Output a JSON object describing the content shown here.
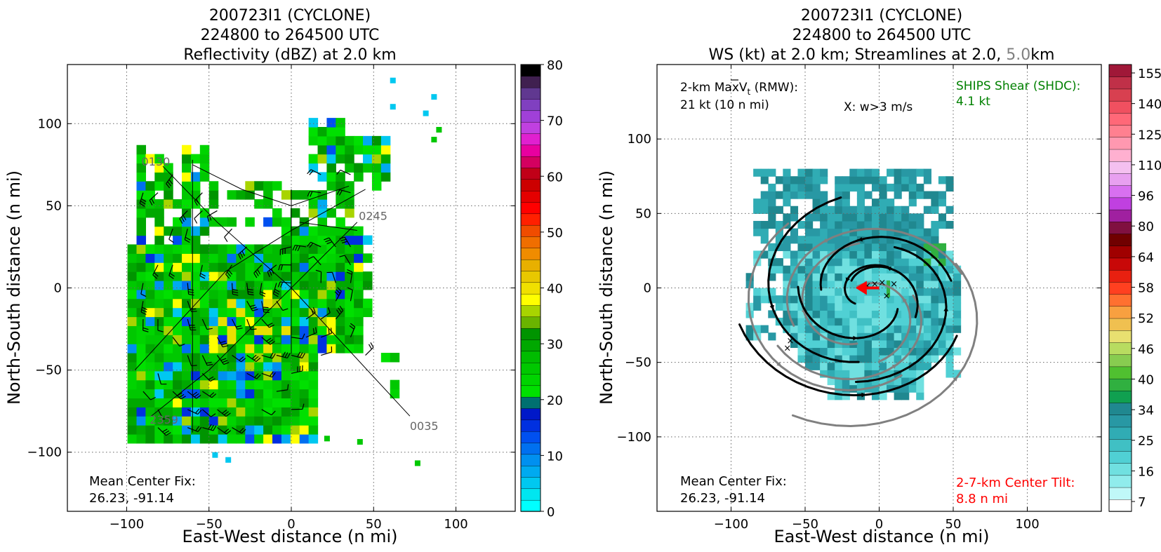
{
  "chart_data": [
    {
      "type": "heatmap",
      "title_lines": [
        "200723I1 (CYCLONE)",
        "224800 to 264500 UTC",
        "Reflectivity (dBZ) at 2.0 km"
      ],
      "xlabel": "East-West distance (n mi)",
      "ylabel": "North-South distance (n mi)",
      "xlim": [
        -136,
        136
      ],
      "ylim": [
        -136,
        136
      ],
      "xticks": [
        -100,
        -50,
        0,
        50,
        100
      ],
      "yticks": [
        -100,
        -50,
        0,
        50,
        100
      ],
      "grid": true,
      "colorbar": {
        "label_values": [
          0,
          10,
          20,
          30,
          40,
          50,
          60,
          70,
          80
        ],
        "range": [
          0,
          80
        ],
        "colors": [
          "#00ffff",
          "#00e6f0",
          "#00c8f0",
          "#00aaf0",
          "#0090f0",
          "#0070f0",
          "#0050f0",
          "#0030e0",
          "#0018c8",
          "#007070",
          "#00e000",
          "#00d400",
          "#00c800",
          "#00bc00",
          "#00a800",
          "#009400",
          "#6ab400",
          "#a8d400",
          "#ffff00",
          "#f0e000",
          "#e8c800",
          "#e8b000",
          "#f08c00",
          "#f06e00",
          "#f04c00",
          "#ff2000",
          "#ff0000",
          "#e40000",
          "#cc0000",
          "#c00018",
          "#d40060",
          "#e800a0",
          "#e020d0",
          "#c040e0",
          "#a040d8",
          "#8040c0",
          "#603890",
          "#402050",
          "#000000"
        ]
      },
      "storm_center": [
        0,
        0
      ],
      "flight_track_labels": [
        {
          "text": "0130",
          "x": -91,
          "y": 77
        },
        {
          "text": "0245",
          "x": 41,
          "y": 44
        },
        {
          "text": "2359",
          "x": -86,
          "y": -80
        },
        {
          "text": "0035",
          "x": 72,
          "y": -84
        }
      ],
      "annotation": {
        "line1": "Mean Center Fix:",
        "line2": "26.23, -91.14"
      }
    },
    {
      "type": "heatmap",
      "title_lines": [
        "200723I1 (CYCLONE)",
        "224800 to 264500 UTC",
        "WS (kt) at 2.0 km; Streamlines at 2.0,",
        "5.0",
        "km"
      ],
      "xlabel": "East-West distance (n mi)",
      "ylabel": "North-South distance (n mi)",
      "xlim": [
        -150,
        150
      ],
      "ylim": [
        -150,
        150
      ],
      "xticks": [
        -100,
        -50,
        0,
        50,
        100
      ],
      "yticks": [
        -100,
        -50,
        0,
        50,
        100
      ],
      "grid": true,
      "colorbar": {
        "label_values": [
          7,
          16,
          25,
          34,
          40,
          46,
          52,
          58,
          64,
          80,
          96,
          110,
          125,
          140,
          155
        ],
        "colors": [
          "#ffffff",
          "#c0f8f8",
          "#90ecec",
          "#70e0e0",
          "#50d0d4",
          "#40c0c4",
          "#30acb4",
          "#2898a4",
          "#208890",
          "#10a050",
          "#30b040",
          "#50c030",
          "#88cc50",
          "#b8dc60",
          "#e8e070",
          "#f0c050",
          "#f8a040",
          "#ff7030",
          "#ff4020",
          "#e82010",
          "#c80808",
          "#a00000",
          "#700000",
          "#801040",
          "#a020a0",
          "#c040e0",
          "#d870f0",
          "#e8a0f0",
          "#f4c0f0",
          "#ffb0d0",
          "#ff98b0",
          "#ff8090",
          "#ff6878",
          "#f05060",
          "#d84050",
          "#c03048",
          "#a01838"
        ]
      },
      "max_vt": {
        "line1": "2-km Max",
        "symbol": "V",
        "sub": "t",
        "after": " (RMW):",
        "line2": "21 kt (10 n mi)"
      },
      "updraft_legend": "X: w>3 m/s",
      "ships_shear": {
        "line1": "SHIPS Shear (SHDC):",
        "line2": "4.1 kt"
      },
      "annotation": {
        "line1": "Mean Center Fix:",
        "line2": "26.23, -91.14"
      },
      "tilt": {
        "line1": "2-7-km Center Tilt:",
        "line2": "8.8 n mi"
      },
      "center_tilt_vector": {
        "from": [
          0,
          0
        ],
        "to": [
          -15,
          0
        ]
      },
      "updraft_markers": [
        [
          -3,
          3
        ],
        [
          -8,
          2
        ],
        [
          2,
          4
        ],
        [
          10,
          3
        ],
        [
          5,
          -5
        ],
        [
          -60,
          -35
        ],
        [
          -62,
          -40
        ]
      ]
    }
  ],
  "colors": {
    "title": "#000000",
    "track_label": "#666666",
    "shear_text": "#008000",
    "tilt_text": "#ff0000",
    "title_5km": "#808080"
  }
}
